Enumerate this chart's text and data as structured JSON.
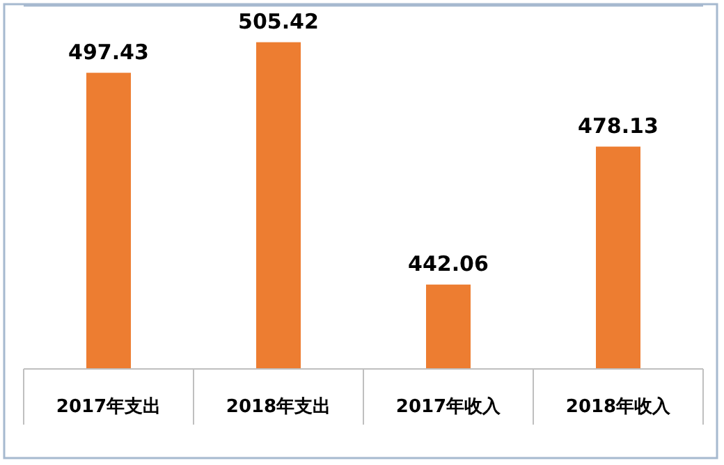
{
  "chart_data": {
    "type": "bar",
    "categories": [
      "2017年支出",
      "2018年支出",
      "2017年收入",
      "2018年收入"
    ],
    "values": [
      497.43,
      505.42,
      442.06,
      478.13
    ],
    "color": "#ed7d31",
    "ylim": [
      420,
      515
    ],
    "data_labels": true,
    "tick_labels": "x"
  }
}
